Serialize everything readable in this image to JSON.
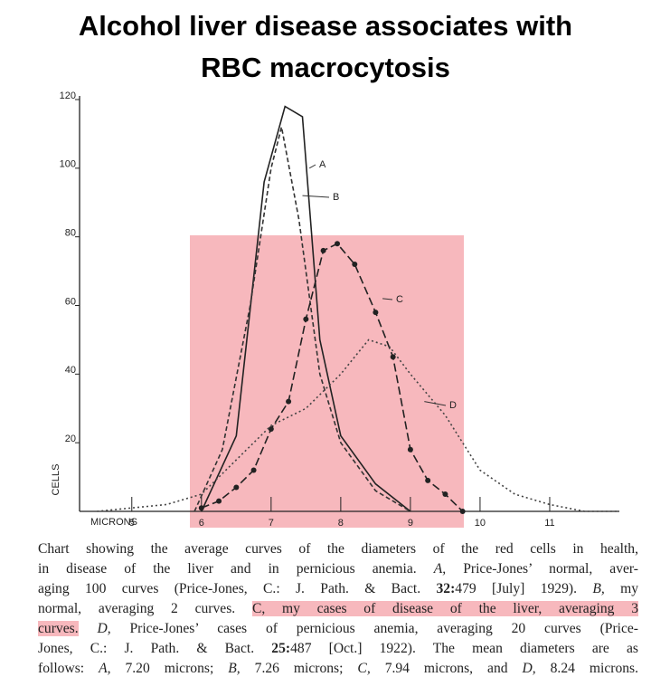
{
  "chart_data": {
    "type": "line",
    "title": "Alcohol liver disease associates with RBC macrocytosis",
    "x_label": "MICRONS",
    "y_label": "CELLS",
    "xlim": [
      4.25,
      12
    ],
    "ylim": [
      0,
      120
    ],
    "xticks": [
      5,
      6,
      7,
      8,
      9,
      10,
      11
    ],
    "yticks": [
      20,
      40,
      60,
      80,
      100,
      120
    ],
    "series": [
      {
        "name": "A",
        "color": "#222222",
        "line_style": "solid",
        "markers": false,
        "x": [
          6,
          6.5,
          6.9,
          7.2,
          7.45,
          7.7,
          8,
          8.5,
          9
        ],
        "values": [
          0,
          22,
          96,
          118,
          115,
          50,
          22,
          8,
          0
        ]
      },
      {
        "name": "B",
        "color": "#333333",
        "line_style": "dashed",
        "markers": false,
        "x": [
          5.9,
          6.3,
          6.7,
          7.0,
          7.15,
          7.4,
          7.7,
          8,
          8.5,
          9
        ],
        "values": [
          0,
          18,
          60,
          100,
          112,
          85,
          40,
          20,
          6,
          0
        ]
      },
      {
        "name": "C",
        "color": "#222222",
        "line_style": "longdash",
        "markers": true,
        "x": [
          6.0,
          6.25,
          6.5,
          6.75,
          7.0,
          7.25,
          7.5,
          7.75,
          7.95,
          8.2,
          8.5,
          8.75,
          9.0,
          9.25,
          9.5,
          9.75
        ],
        "values": [
          1,
          3,
          7,
          12,
          24,
          32,
          56,
          76,
          78,
          72,
          58,
          45,
          18,
          9,
          5,
          0
        ]
      },
      {
        "name": "D",
        "color": "#444444",
        "line_style": "dotted",
        "markers": false,
        "x": [
          4.5,
          5.5,
          6,
          6.5,
          7,
          7.5,
          8,
          8.4,
          8.7,
          9,
          9.5,
          10,
          10.5,
          11,
          11.5,
          12
        ],
        "values": [
          0,
          2,
          5,
          15,
          25,
          30,
          40,
          50,
          48,
          40,
          28,
          12,
          5,
          2,
          0,
          0
        ]
      }
    ]
  },
  "caption": {
    "lines": [
      [
        {
          "text": "Chart showing the average curves of the diameters of the red cells in health,"
        }
      ],
      [
        {
          "text": "in disease of the liver and in pernicious anemia. "
        },
        {
          "text": "A,",
          "style": "italic"
        },
        {
          "text": " Price-Jones’ normal, aver-"
        }
      ],
      [
        {
          "text": "aging 100 curves (Price-Jones, C.: J. Path. & Bact. "
        },
        {
          "text": "32:",
          "style": "bold"
        },
        {
          "text": "479 [July] 1929). "
        },
        {
          "text": "B,",
          "style": "italic"
        },
        {
          "text": " my"
        }
      ],
      [
        {
          "text": "normal, averaging 2 curves. "
        },
        {
          "text": "C, my cases of disease of the liver, averaging 3",
          "style": "highlight"
        }
      ],
      [
        {
          "text": "curves.",
          "style": "highlight"
        },
        {
          "text": " "
        },
        {
          "text": "D,",
          "style": "italic"
        },
        {
          "text": " Price-Jones’ cases of pernicious anemia, averaging 20 curves (Price-"
        }
      ],
      [
        {
          "text": "Jones, C.: J. Path. & Bact. "
        },
        {
          "text": "25:",
          "style": "bold"
        },
        {
          "text": "487 [Oct.] 1922). The mean diameters are as"
        }
      ],
      [
        {
          "text": "follows: "
        },
        {
          "text": "A,",
          "style": "italic"
        },
        {
          "text": " 7.20 microns; "
        },
        {
          "text": "B,",
          "style": "italic"
        },
        {
          "text": " 7.26 microns; "
        },
        {
          "text": "C,",
          "style": "italic"
        },
        {
          "text": " 7.94 microns, and "
        },
        {
          "text": "D,",
          "style": "italic"
        },
        {
          "text": " 8.24 microns."
        }
      ]
    ]
  }
}
